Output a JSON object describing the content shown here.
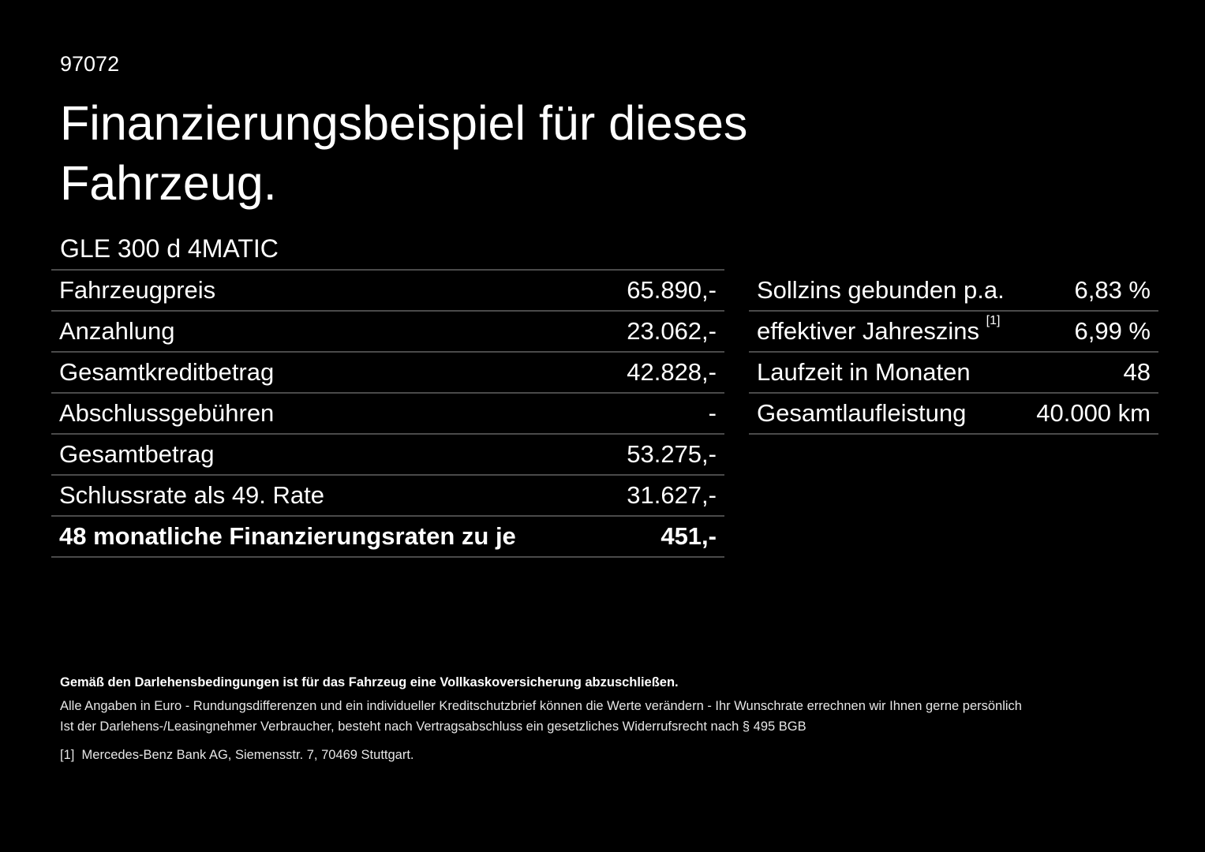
{
  "code": "97072",
  "title": "Finanzierungsbeispiel für dieses Fahrzeug.",
  "model": "GLE 300 d 4MATIC",
  "left_rows": [
    {
      "label": "Fahrzeugpreis",
      "value": "65.890,-"
    },
    {
      "label": "Anzahlung",
      "value": "23.062,-"
    },
    {
      "label": "Gesamtkreditbetrag",
      "value": "42.828,-"
    },
    {
      "label": "Abschlussgebühren",
      "value": "-"
    },
    {
      "label": "Gesamtbetrag",
      "value": "53.275,-"
    },
    {
      "label": "Schlussrate als 49. Rate",
      "value": "31.627,-"
    },
    {
      "label": "48 monatliche Finanzierungsraten zu je",
      "value": "451,-"
    }
  ],
  "right_rows": [
    {
      "label": "Sollzins gebunden p.a.",
      "value": "6,83 %"
    },
    {
      "label": "effektiver Jahreszins",
      "sup": "[1]",
      "value": "6,99 %"
    },
    {
      "label": "Laufzeit in Monaten",
      "value": "48"
    },
    {
      "label": "Gesamtlaufleistung",
      "value": "40.000 km"
    }
  ],
  "notes": {
    "bold": "Gemäß den Darlehensbedingungen ist für das Fahrzeug eine Vollkaskoversicherung abzuschließen.",
    "line1": "Alle Angaben in Euro - Rundungsdifferenzen und ein individueller Kreditschutzbrief können die Werte verändern - Ihr Wunschrate errechnen wir Ihnen gerne persönlich",
    "line2": "Ist der Darlehens-/Leasingnehmer Verbraucher, besteht nach Vertragsabschluss ein gesetzliches Widerrufsrecht nach § 495 BGB",
    "footnote_mark": "[1]",
    "footnote": "Mercedes-Benz Bank AG, Siemensstr. 7, 70469 Stuttgart."
  }
}
